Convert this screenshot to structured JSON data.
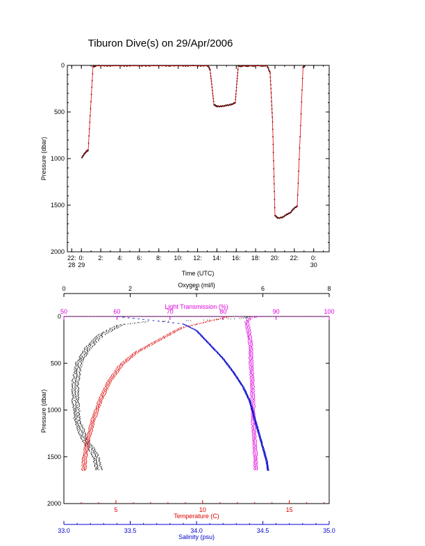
{
  "title": "Tiburon Dive(s) on 29/Apr/2006",
  "colors": {
    "axis": "#000000",
    "oxygen": "#000000",
    "temperature": "#dd0000",
    "salinity": "#0000cc",
    "transmission": "#dd00dd",
    "track_line": "#dd0000",
    "track_points": "#000000"
  },
  "chart_data": [
    {
      "type": "line",
      "title": "Tiburon Dive(s) on 29/Apr/2006",
      "xlabel": "Time (UTC)",
      "ylabel": "Pressure (dbar)",
      "ylim": [
        2000,
        0
      ],
      "yticks": [
        "0",
        "500",
        "1000",
        "1500",
        "2000"
      ],
      "xlim_hours": [
        -1.45,
        25.6
      ],
      "xticks": [
        {
          "h": -1,
          "line1": "22:",
          "line2": "28"
        },
        {
          "h": 0,
          "line1": "0:",
          "line2": "29"
        },
        {
          "h": 2,
          "line1": "2:",
          "line2": ""
        },
        {
          "h": 4,
          "line1": "4:",
          "line2": ""
        },
        {
          "h": 6,
          "line1": "6:",
          "line2": ""
        },
        {
          "h": 8,
          "line1": "8:",
          "line2": ""
        },
        {
          "h": 10,
          "line1": "10:",
          "line2": ""
        },
        {
          "h": 12,
          "line1": "12:",
          "line2": ""
        },
        {
          "h": 14,
          "line1": "14:",
          "line2": ""
        },
        {
          "h": 16,
          "line1": "16:",
          "line2": ""
        },
        {
          "h": 18,
          "line1": "18:",
          "line2": ""
        },
        {
          "h": 20,
          "line1": "20:",
          "line2": ""
        },
        {
          "h": 22,
          "line1": "22:",
          "line2": ""
        },
        {
          "h": 24,
          "line1": "0:",
          "line2": "30"
        }
      ],
      "series": [
        {
          "style": "red-line-black-points",
          "points": [
            [
              0.05,
              990
            ],
            [
              0.3,
              950
            ],
            [
              0.55,
              920
            ],
            [
              0.7,
              910
            ],
            [
              1.2,
              15
            ],
            [
              1.5,
              5
            ],
            [
              5,
              5
            ],
            [
              10,
              5
            ],
            [
              13.1,
              5
            ],
            [
              13.3,
              50
            ],
            [
              13.7,
              420
            ],
            [
              14.0,
              440
            ],
            [
              14.5,
              440
            ],
            [
              15.0,
              430
            ],
            [
              15.5,
              420
            ],
            [
              15.9,
              400
            ],
            [
              16.2,
              10
            ],
            [
              17.5,
              5
            ],
            [
              19.2,
              5
            ],
            [
              19.5,
              80
            ],
            [
              19.75,
              600
            ],
            [
              20.0,
              1610
            ],
            [
              20.3,
              1640
            ],
            [
              20.8,
              1630
            ],
            [
              21.2,
              1600
            ],
            [
              21.6,
              1580
            ],
            [
              21.9,
              1540
            ],
            [
              22.3,
              1510
            ],
            [
              22.9,
              20
            ],
            [
              23.1,
              5
            ]
          ]
        }
      ]
    },
    {
      "type": "scatter",
      "ylabel": "Pressure (dbar)",
      "ylim": [
        2000,
        0
      ],
      "yticks": [
        "0",
        "500",
        "1000",
        "1500",
        "2000"
      ],
      "axes": {
        "oxygen": {
          "label": "Oxygen (ml/l)",
          "range": [
            0,
            8
          ],
          "ticks": [
            0,
            2,
            4,
            6,
            8
          ],
          "position": "top"
        },
        "transmission": {
          "label": "Light Transmission (%)",
          "range": [
            50,
            100
          ],
          "ticks": [
            50,
            60,
            70,
            80,
            90,
            100
          ],
          "position": "top"
        },
        "temperature": {
          "label": "Temperature (C)",
          "range": [
            2,
            17.3
          ],
          "ticks": [
            5,
            10,
            15
          ],
          "position": "bottom"
        },
        "salinity": {
          "label": "Salinity (psu)",
          "range": [
            33.0,
            35.0
          ],
          "ticks": [
            "33.0",
            "33.5",
            "34.0",
            "34.5",
            "35.0"
          ],
          "position": "bottom"
        }
      },
      "series": [
        {
          "name": "Oxygen (ml/l)",
          "axis": "oxygen",
          "profile": [
            [
              5.6,
              0
            ],
            [
              5.4,
              20
            ],
            [
              4.2,
              40
            ],
            [
              2.5,
              55
            ],
            [
              1.7,
              90
            ],
            [
              1.1,
              200
            ],
            [
              0.7,
              350
            ],
            [
              0.45,
              500
            ],
            [
              0.35,
              700
            ],
            [
              0.35,
              900
            ],
            [
              0.4,
              1100
            ],
            [
              0.6,
              1300
            ],
            [
              0.9,
              1450
            ],
            [
              1.0,
              1550
            ],
            [
              1.05,
              1640
            ]
          ],
          "spread": 0.08
        },
        {
          "name": "Light Transmission (%)",
          "axis": "transmission",
          "profile": [
            [
              87,
              0
            ],
            [
              85,
              20
            ],
            [
              84.5,
              60
            ],
            [
              84.8,
              150
            ],
            [
              85.2,
              300
            ],
            [
              85.3,
              500
            ],
            [
              85.5,
              700
            ],
            [
              85.6,
              900
            ],
            [
              85.7,
              1100
            ],
            [
              85.9,
              1300
            ],
            [
              86.1,
              1500
            ],
            [
              86.2,
              1640
            ]
          ],
          "spread": 0.3
        },
        {
          "name": "Temperature (C)",
          "axis": "temperature",
          "profile": [
            [
              11.6,
              0
            ],
            [
              11.2,
              15
            ],
            [
              8.8,
              120
            ],
            [
              7.5,
              250
            ],
            [
              6.2,
              380
            ],
            [
              5.3,
              520
            ],
            [
              4.6,
              700
            ],
            [
              4.1,
              900
            ],
            [
              3.7,
              1100
            ],
            [
              3.4,
              1300
            ],
            [
              3.2,
              1500
            ],
            [
              3.15,
              1650
            ]
          ],
          "spread": 0.1
        },
        {
          "name": "Salinity (psu)",
          "axis": "salinity",
          "profile": [
            [
              33.4,
              0
            ],
            [
              33.9,
              80
            ],
            [
              34.0,
              150
            ],
            [
              34.1,
              300
            ],
            [
              34.2,
              450
            ],
            [
              34.28,
              600
            ],
            [
              34.35,
              750
            ],
            [
              34.4,
              900
            ],
            [
              34.43,
              1050
            ],
            [
              34.46,
              1200
            ],
            [
              34.5,
              1400
            ],
            [
              34.53,
              1550
            ],
            [
              34.54,
              1650
            ]
          ],
          "spread": 0.005
        }
      ]
    }
  ]
}
